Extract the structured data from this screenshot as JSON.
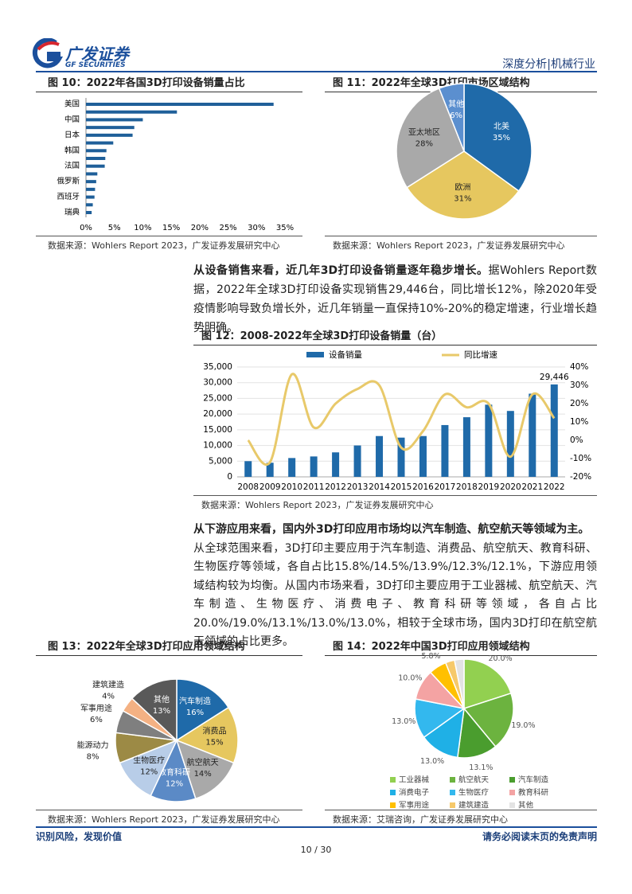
{
  "header": {
    "brand_cn": "广发证券",
    "brand_en": "GF SECURITIES",
    "section": "深度分析|机械行业"
  },
  "chart_data": [
    {
      "type": "hbar",
      "title": "图 10：2022年各国3D打印设备销量占比",
      "categories": [
        "美国",
        null,
        "中国",
        null,
        "日本",
        null,
        "韩国",
        null,
        "法国",
        null,
        "俄罗斯",
        null,
        "西班牙",
        null,
        "瑞典"
      ],
      "values": [
        33,
        16,
        10,
        8.5,
        8.2,
        4.8,
        3.6,
        3.4,
        3.3,
        2.0,
        1.8,
        1.6,
        1.5,
        1.2,
        1.0
      ],
      "color": "#1f5f99",
      "xlim": [
        0,
        35
      ],
      "xticks": [
        {
          "value": 0,
          "label": "0%"
        },
        {
          "value": 5,
          "label": "5%"
        },
        {
          "value": 10,
          "label": "10%"
        },
        {
          "value": 15,
          "label": "15%"
        },
        {
          "value": 20,
          "label": "20%"
        },
        {
          "value": 25,
          "label": "25%"
        },
        {
          "value": 30,
          "label": "30%"
        },
        {
          "value": 35,
          "label": "35%"
        }
      ],
      "source": "数据来源：Wohlers Report 2023，广发证券发展研究中心"
    },
    {
      "type": "pie",
      "title": "图 11：2022年全球3D打印市场区域结构",
      "categories": [
        "北美",
        "欧洲",
        "亚太地区",
        "其他"
      ],
      "values": [
        35,
        31,
        28,
        6
      ],
      "value_labels": [
        "35%",
        "31%",
        "28%",
        "6%"
      ],
      "colors": [
        "#1f6aa9",
        "#e6c75f",
        "#a9a9a9",
        "#5b8fcf"
      ],
      "source": "数据来源：Wohlers Report 2023，广发证券发展研究中心"
    },
    {
      "type": "combo",
      "title": "图 12：2008-2022年全球3D打印设备销量（台）",
      "categories": [
        "2008",
        "2009",
        "2010",
        "2011",
        "2012",
        "2013",
        "2014",
        "2015",
        "2016",
        "2017",
        "2018",
        "2019",
        "2020",
        "2021",
        "2022"
      ],
      "series": [
        {
          "name": "设备销量",
          "type": "bar",
          "color": "#1f6aa9",
          "values": [
            5000,
            4500,
            6000,
            6500,
            7800,
            10000,
            13000,
            12500,
            13000,
            16500,
            19000,
            23000,
            21000,
            26500,
            29446
          ],
          "value_labels": [
            null,
            null,
            null,
            null,
            null,
            null,
            null,
            null,
            null,
            null,
            null,
            null,
            null,
            null,
            "29,446"
          ]
        },
        {
          "name": "同比增速",
          "type": "line",
          "axis": "y2",
          "color": "#e8c96a",
          "values": [
            0,
            -12,
            36,
            7,
            20,
            28,
            30,
            -4,
            5,
            25,
            18,
            20,
            -9,
            25,
            12
          ]
        }
      ],
      "ylim": [
        0,
        35000
      ],
      "yticks": [
        0,
        {
          "value": 5000,
          "label": "5,000"
        },
        {
          "value": 10000,
          "label": "10,000"
        },
        {
          "value": 15000,
          "label": "15,000"
        },
        {
          "value": 20000,
          "label": "20,000"
        },
        {
          "value": 25000,
          "label": "25,000"
        },
        {
          "value": 30000,
          "label": "30,000"
        },
        {
          "value": 35000,
          "label": "35,000"
        }
      ],
      "y2lim": [
        -20,
        40
      ],
      "y2ticks": [
        {
          "value": -20,
          "label": "-20%"
        },
        {
          "value": -10,
          "label": "-10%"
        },
        {
          "value": 0,
          "label": "0%"
        },
        {
          "value": 10,
          "label": "10%"
        },
        {
          "value": 20,
          "label": "20%"
        },
        {
          "value": 30,
          "label": "30%"
        },
        {
          "value": 40,
          "label": "40%"
        }
      ],
      "source": "数据来源：Wohlers Report 2023，广发证券发展研究中心"
    },
    {
      "type": "pie",
      "title": "图 13：2022年全球3D打印应用领域结构",
      "categories": [
        "汽车制造",
        "消费品",
        "航空航天",
        "教育科研",
        "生物医疗",
        "能源动力",
        "军事用途",
        "建筑建造",
        "其他"
      ],
      "values": [
        16,
        15,
        14,
        12,
        12,
        8,
        6,
        4,
        13
      ],
      "value_labels": [
        "16%",
        "15%",
        "14%",
        "12%",
        "12%",
        "8%",
        "6%",
        "4%",
        "13%"
      ],
      "colors": [
        "#1f6aa9",
        "#e6c75f",
        "#a9a9a9",
        "#5b8ac6",
        "#b8cde8",
        "#9c8a45",
        "#7f7f7f",
        "#f4b183",
        "#595959"
      ],
      "source": "数据来源：Wohlers Report 2023，广发证券发展研究中心"
    },
    {
      "type": "pie-legend",
      "title": "图 14：2022年中国3D打印应用领域结构",
      "categories": [
        "工业器械",
        "航空航天",
        "汽车制造",
        "消费电子",
        "生物医疗",
        "教育科研",
        "军事用途",
        "建筑建造",
        "其他"
      ],
      "values": [
        20.0,
        19.0,
        13.1,
        13.0,
        13.0,
        10.0,
        5.8,
        3.0,
        3.1
      ],
      "value_labels": [
        "20.0%",
        "19.0%",
        "13.1%",
        "13.0%",
        "13.0%",
        "10.0%",
        "5.8%",
        "3.0%",
        "3.1%"
      ],
      "colors": [
        "#92d050",
        "#6cb33f",
        "#4a9d2e",
        "#1fb0e6",
        "#33b8ee",
        "#f4a3a3",
        "#ffc000",
        "#f6c96a",
        "#e3e3e3"
      ],
      "source": "数据来源：艾瑞咨询，广发证券发展研究中心"
    }
  ],
  "paragraphs": [
    {
      "lead": "从设备销售来看，近几年3D打印设备销量逐年稳步增长。",
      "body": "据Wohlers Report数据，2022年全球3D打印设备实现销售29,446台，同比增长12%，除2020年受疫情影响导致负增长外，近几年销量一直保持10%-20%的稳定增速，行业增长趋势明确。"
    },
    {
      "lead": "从下游应用来看，国内外3D打印应用市场均以汽车制造、航空航天等领域为主。",
      "body": "从全球范围来看，3D打印主要应用于汽车制造、消费品、航空航天、教育科研、生物医疗等领域，各自占比15.8%/14.5%/13.9%/12.3%/12.1%，下游应用领域结构较为均衡。从国内市场来看，3D打印主要应用于工业器械、航空航天、汽车制造、生物医疗、消费电子、教育科研等领域，各自占比20.0%/19.0%/13.1%/13.0%/13.0%，相较于全球市场，国内3D打印在航空航天领域的占比更多。"
    }
  ],
  "footer": {
    "left": "识别风险，发现价值",
    "right": "请务必阅读末页的免责声明",
    "page": "10 / 30"
  }
}
